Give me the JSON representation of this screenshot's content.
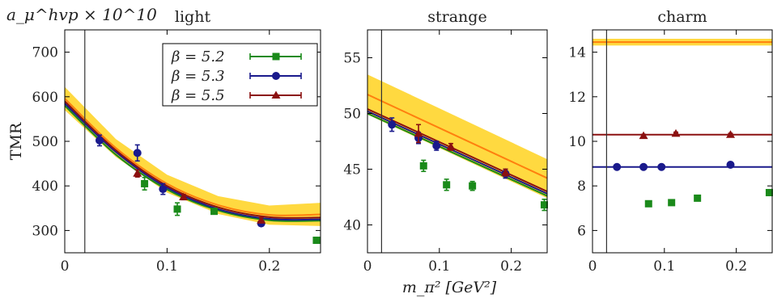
{
  "figure": {
    "ylabel_top": "a_μ^hvp × 10^10",
    "ylabel_side": "TMR",
    "xlabel": "m_π² [GeV²]",
    "legend": [
      {
        "label": "β = 5.2",
        "color": "#1a8a1a",
        "marker": "square"
      },
      {
        "label": "β = 5.3",
        "color": "#1a1a8c",
        "marker": "circle"
      },
      {
        "label": "β = 5.5",
        "color": "#8b1010",
        "marker": "triangle"
      }
    ],
    "colors": {
      "band": "#ffd21f",
      "fit_physical": "#ff7f0e",
      "grid": "#000000"
    }
  },
  "chart_data": [
    {
      "type": "scatter",
      "title": "light",
      "xlim": [
        0,
        0.25
      ],
      "ylim": [
        250,
        750
      ],
      "xticks": [
        "0",
        "0.1",
        "0.2"
      ],
      "yticks": [
        "300",
        "400",
        "500",
        "600",
        "700"
      ],
      "vertical_line_x": 0.0196,
      "series": [
        {
          "name": "β = 5.2",
          "points": [
            [
              0.078,
              405,
              14
            ],
            [
              0.11,
              348,
              14
            ],
            [
              0.146,
              343,
              6
            ],
            [
              0.246,
              278,
              6
            ]
          ]
        },
        {
          "name": "β = 5.3",
          "points": [
            [
              0.034,
              502,
              12
            ],
            [
              0.071,
              474,
              18
            ],
            [
              0.096,
              393,
              12
            ],
            [
              0.192,
              316,
              5
            ]
          ]
        },
        {
          "name": "β = 5.5",
          "points": [
            [
              0.071,
              428,
              8
            ],
            [
              0.116,
              375,
              6
            ],
            [
              0.192,
              323,
              6
            ]
          ]
        }
      ],
      "fit_curves": [
        {
          "series": "β = 5.2",
          "points": [
            [
              0,
              580
            ],
            [
              0.05,
              470
            ],
            [
              0.1,
              392
            ],
            [
              0.15,
              345
            ],
            [
              0.2,
              323
            ],
            [
              0.25,
              322
            ]
          ]
        },
        {
          "series": "β = 5.3",
          "points": [
            [
              0,
              585
            ],
            [
              0.05,
              476
            ],
            [
              0.1,
              396
            ],
            [
              0.15,
              348
            ],
            [
              0.2,
              326
            ],
            [
              0.25,
              325
            ]
          ]
        },
        {
          "series": "β = 5.5",
          "points": [
            [
              0,
              590
            ],
            [
              0.05,
              480
            ],
            [
              0.1,
              400
            ],
            [
              0.15,
              352
            ],
            [
              0.2,
              330
            ],
            [
              0.25,
              329
            ]
          ]
        },
        {
          "series": "continuum",
          "points": [
            [
              0,
              596
            ],
            [
              0.05,
              485
            ],
            [
              0.1,
              405
            ],
            [
              0.15,
              357
            ],
            [
              0.2,
              335
            ],
            [
              0.25,
              336
            ]
          ]
        }
      ],
      "band": {
        "points": [
          [
            0,
            570,
            622
          ],
          [
            0.05,
            465,
            505
          ],
          [
            0.1,
            385,
            425
          ],
          [
            0.15,
            337,
            377
          ],
          [
            0.2,
            313,
            356
          ],
          [
            0.25,
            310,
            362
          ]
        ]
      }
    },
    {
      "type": "scatter",
      "title": "strange",
      "xlim": [
        0,
        0.25
      ],
      "ylim": [
        37.5,
        57.5
      ],
      "xticks": [
        "0",
        "0.1",
        "0.2"
      ],
      "yticks": [
        "40",
        "45",
        "50",
        "55"
      ],
      "vertical_line_x": 0.0196,
      "series": [
        {
          "name": "β = 5.2",
          "points": [
            [
              0.078,
              45.3,
              0.5
            ],
            [
              0.11,
              43.6,
              0.5
            ],
            [
              0.146,
              43.5,
              0.4
            ],
            [
              0.246,
              41.8,
              0.5
            ]
          ]
        },
        {
          "name": "β = 5.3",
          "points": [
            [
              0.034,
              49.0,
              0.6
            ],
            [
              0.071,
              47.8,
              0.5
            ],
            [
              0.096,
              47.1,
              0.4
            ],
            [
              0.192,
              44.6,
              0.4
            ]
          ]
        },
        {
          "name": "β = 5.5",
          "points": [
            [
              0.071,
              48.2,
              0.8
            ],
            [
              0.116,
              47.0,
              0.3
            ],
            [
              0.192,
              44.7,
              0.3
            ]
          ]
        }
      ],
      "fit_curves": [
        {
          "series": "β = 5.2",
          "points": [
            [
              0,
              50.0
            ],
            [
              0.25,
              42.6
            ]
          ]
        },
        {
          "series": "β = 5.3",
          "points": [
            [
              0,
              50.2
            ],
            [
              0.25,
              42.8
            ]
          ]
        },
        {
          "series": "β = 5.5",
          "points": [
            [
              0,
              50.4
            ],
            [
              0.25,
              43.0
            ]
          ]
        },
        {
          "series": "continuum",
          "points": [
            [
              0,
              51.7
            ],
            [
              0.25,
              44.2
            ]
          ]
        }
      ],
      "band": {
        "points": [
          [
            0,
            49.9,
            53.5
          ],
          [
            0.25,
            42.4,
            45.9
          ]
        ]
      }
    },
    {
      "type": "scatter",
      "title": "charm",
      "xlim": [
        0,
        0.25
      ],
      "ylim": [
        5,
        15
      ],
      "xticks": [
        "0",
        "0.1",
        "0.2"
      ],
      "yticks": [
        "6",
        "8",
        "10",
        "12",
        "14"
      ],
      "vertical_line_x": 0.0196,
      "series": [
        {
          "name": "β = 5.2",
          "points": [
            [
              0.078,
              7.2,
              0.05
            ],
            [
              0.11,
              7.25,
              0.05
            ],
            [
              0.146,
              7.45,
              0.05
            ],
            [
              0.246,
              7.7,
              0.05
            ]
          ]
        },
        {
          "name": "β = 5.3",
          "points": [
            [
              0.034,
              8.85,
              0.05
            ],
            [
              0.071,
              8.85,
              0.05
            ],
            [
              0.096,
              8.85,
              0.05
            ],
            [
              0.192,
              8.95,
              0.05
            ]
          ]
        },
        {
          "name": "β = 5.5",
          "points": [
            [
              0.071,
              10.25,
              0.06
            ],
            [
              0.116,
              10.35,
              0.06
            ],
            [
              0.192,
              10.3,
              0.06
            ]
          ]
        }
      ],
      "fit_curves": [
        {
          "series": "β = 5.3",
          "points": [
            [
              0,
              8.85
            ],
            [
              0.25,
              8.85
            ]
          ]
        },
        {
          "series": "β = 5.5",
          "points": [
            [
              0,
              10.3
            ],
            [
              0.25,
              10.3
            ]
          ]
        },
        {
          "series": "continuum",
          "points": [
            [
              0,
              14.45
            ],
            [
              0.25,
              14.45
            ]
          ]
        }
      ],
      "band": {
        "points": [
          [
            0,
            14.3,
            14.6
          ],
          [
            0.25,
            14.3,
            14.6
          ]
        ]
      }
    }
  ]
}
